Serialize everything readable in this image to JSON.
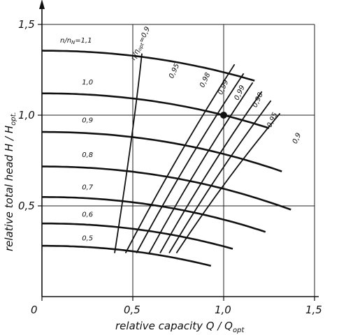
{
  "chart_data": {
    "type": "line",
    "xlabel": "relative capacity  Q / Q",
    "xlabel_sub": "opt",
    "ylabel": "relative total head  H / H",
    "ylabel_sub": "opt.",
    "xlim": [
      0,
      1.5
    ],
    "ylim": [
      0,
      1.5
    ],
    "grid": true,
    "x_ticks": [
      {
        "value": 0,
        "label": "0"
      },
      {
        "value": 0.5,
        "label": "0,5"
      },
      {
        "value": 1.0,
        "label": "1,0"
      },
      {
        "value": 1.5,
        "label": "1,5"
      }
    ],
    "y_ticks": [
      {
        "value": 0.5,
        "label": "0,5"
      },
      {
        "value": 1.0,
        "label": "1,0"
      },
      {
        "value": 1.5,
        "label": "1,5"
      }
    ],
    "speed_curves": [
      {
        "label": "n/n",
        "label_sub": "N",
        "label_tail": "=1,1",
        "speed_ratio": 1.1,
        "label_at": [
          0.1,
          1.4
        ],
        "x_end": 1.17
      },
      {
        "label": "1,0",
        "speed_ratio": 1.0,
        "label_at": [
          0.22,
          1.17
        ],
        "x_end": 1.25
      },
      {
        "label": "0,9",
        "speed_ratio": 0.9,
        "label_at": [
          0.22,
          0.96
        ],
        "x_end": 1.32
      },
      {
        "label": "0,8",
        "speed_ratio": 0.8,
        "label_at": [
          0.22,
          0.77
        ],
        "x_end": 1.37
      },
      {
        "label": "0,7",
        "speed_ratio": 0.7,
        "label_at": [
          0.22,
          0.59
        ],
        "x_end": 1.23
      },
      {
        "label": "0,6",
        "speed_ratio": 0.6,
        "label_at": [
          0.22,
          0.44
        ],
        "x_end": 1.05
      },
      {
        "label": "0,5",
        "speed_ratio": 0.5,
        "label_at": [
          0.22,
          0.31
        ],
        "x_end": 0.93
      }
    ],
    "efficiency_curves": [
      {
        "label": "η/η",
        "label_sub": "opt",
        "label_tail": "=0,9",
        "left_points": [
          [
            0.4,
            0.24
          ],
          [
            0.51,
            0.95
          ],
          [
            0.55,
            1.34
          ]
        ],
        "label_at": [
          0.51,
          1.3
        ]
      },
      {
        "label": "0,95",
        "label_at": [
          0.72,
          1.2
        ]
      },
      {
        "label": "0,98",
        "label_at": [
          0.89,
          1.15
        ]
      },
      {
        "label": "0,99",
        "label_at": [
          0.99,
          1.11
        ]
      },
      {
        "label": "0,99",
        "label_at": [
          1.08,
          1.08
        ]
      },
      {
        "label": "0,98",
        "label_at": [
          1.18,
          1.04
        ]
      },
      {
        "label": "0,95",
        "label_at": [
          1.26,
          0.93
        ]
      },
      {
        "label": "0,9",
        "label_at": [
          1.4,
          0.84
        ]
      }
    ],
    "efficiency_lines_right": [
      [
        [
          0.46,
          0.24
        ],
        [
          1.06,
          1.28
        ]
      ],
      [
        [
          0.52,
          0.24
        ],
        [
          1.11,
          1.23
        ]
      ],
      [
        [
          0.59,
          0.24
        ],
        [
          1.16,
          1.18
        ]
      ],
      [
        [
          0.65,
          0.24
        ],
        [
          1.21,
          1.13
        ]
      ],
      [
        [
          0.7,
          0.24
        ],
        [
          1.26,
          1.08
        ]
      ],
      [
        [
          0.74,
          0.24
        ],
        [
          1.31,
          1.01
        ]
      ]
    ],
    "operating_point": {
      "x": 1.0,
      "y": 1.0
    }
  }
}
